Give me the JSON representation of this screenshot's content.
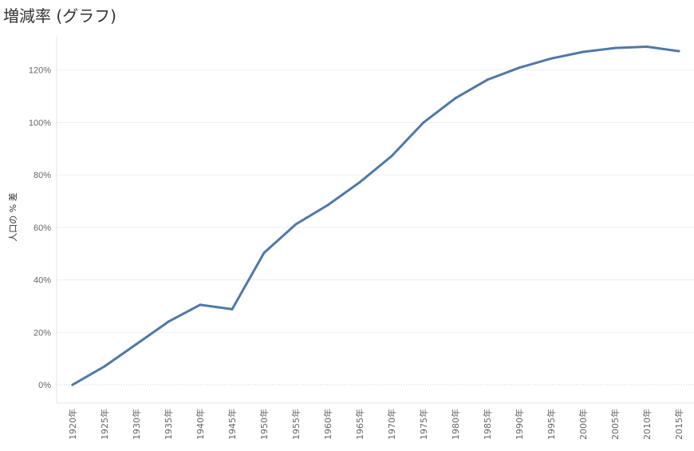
{
  "title": "増減率 (グラフ)",
  "chart_data": {
    "type": "line",
    "title": "増減率 (グラフ)",
    "xlabel": "",
    "ylabel": "人口の % 差",
    "ylim": [
      -7,
      133
    ],
    "y_ticks": [
      0,
      20,
      40,
      60,
      80,
      100,
      120
    ],
    "y_tick_labels": [
      "0%",
      "20%",
      "40%",
      "60%",
      "80%",
      "100%",
      "120%"
    ],
    "grid": true,
    "color": "#4e79a7",
    "categories": [
      "1920年",
      "1925年",
      "1930年",
      "1935年",
      "1940年",
      "1945年",
      "1950年",
      "1955年",
      "1960年",
      "1965年",
      "1970年",
      "1975年",
      "1980年",
      "1985年",
      "1990年",
      "1995年",
      "2000年",
      "2005年",
      "2010年",
      "2015年"
    ],
    "values": [
      0,
      7,
      15.5,
      24,
      30.5,
      28.8,
      50.3,
      61.2,
      68.5,
      77.2,
      87.2,
      100,
      109.3,
      116.3,
      120.9,
      124.4,
      126.9,
      128.4,
      128.9,
      127.2
    ]
  }
}
